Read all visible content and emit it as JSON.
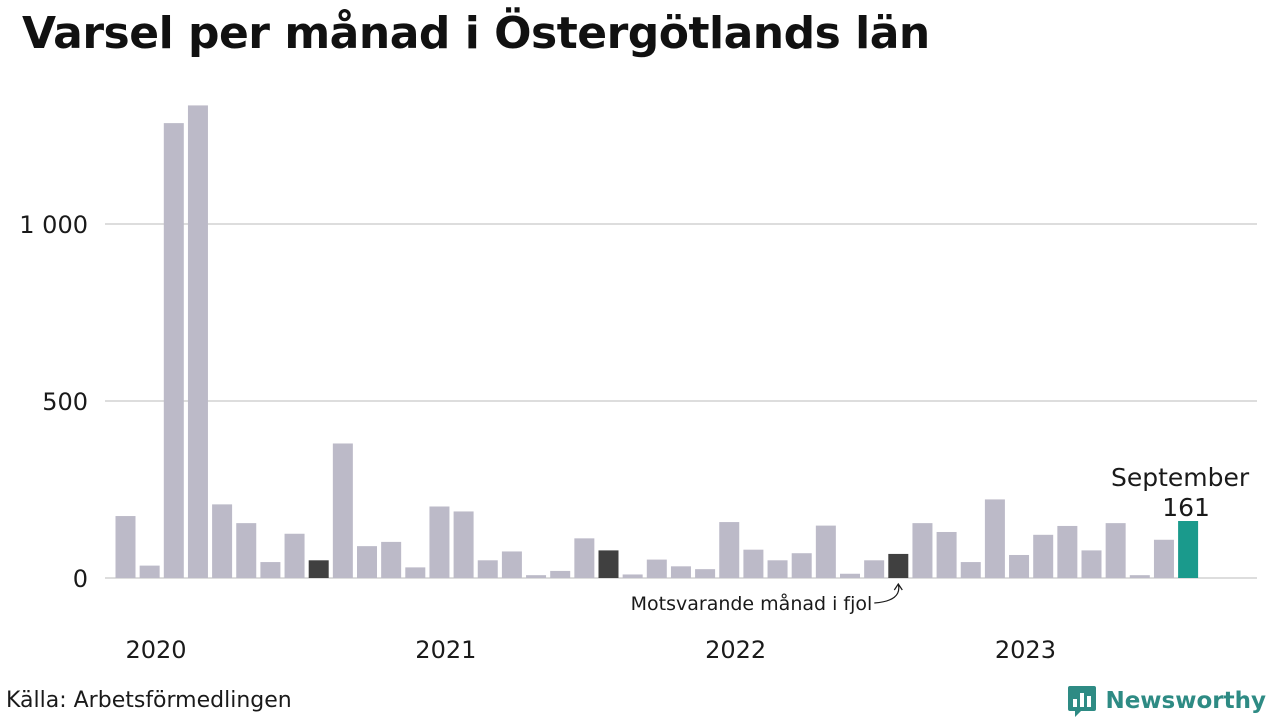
{
  "title": "Varsel per månad i Östergötlands län",
  "source": "Källa: Arbetsförmedlingen",
  "brand": {
    "name": "Newsworthy",
    "color": "#2e8b84",
    "icon": "chart-bars-icon"
  },
  "colors": {
    "bar": "#bcbac8",
    "comparison": "#404040",
    "highlight": "#1a9a8c",
    "grid": "#dddddd",
    "text": "#1a1a1a"
  },
  "annotations": {
    "highlight_label": "September",
    "highlight_value": "161",
    "comparison_label": "Motsvarande månad i fjol"
  },
  "chart_data": {
    "type": "bar",
    "title": "Varsel per månad i Östergötlands län",
    "xlabel": "",
    "ylabel": "",
    "ylim": [
      0,
      1400
    ],
    "yticks": [
      0,
      500,
      1000
    ],
    "ytick_labels": [
      "0",
      "500",
      "1 000"
    ],
    "x_tick_labels": [
      {
        "label": "2020",
        "category": "2020-01"
      },
      {
        "label": "2021",
        "category": "2021-01"
      },
      {
        "label": "2022",
        "category": "2022-01"
      },
      {
        "label": "2023",
        "category": "2023-01"
      }
    ],
    "grid": true,
    "categories": [
      "2020-01",
      "2020-02",
      "2020-03",
      "2020-04",
      "2020-05",
      "2020-06",
      "2020-07",
      "2020-08",
      "2020-09",
      "2020-10",
      "2020-11",
      "2020-12",
      "2021-01",
      "2021-02",
      "2021-03",
      "2021-04",
      "2021-05",
      "2021-06",
      "2021-07",
      "2021-08",
      "2021-09",
      "2021-10",
      "2021-11",
      "2021-12",
      "2022-01",
      "2022-02",
      "2022-03",
      "2022-04",
      "2022-05",
      "2022-06",
      "2022-07",
      "2022-08",
      "2022-09",
      "2022-10",
      "2022-11",
      "2022-12",
      "2023-01",
      "2023-02",
      "2023-03",
      "2023-04",
      "2023-05",
      "2023-06",
      "2023-07",
      "2023-08",
      "2023-09"
    ],
    "values": [
      175,
      35,
      1285,
      1335,
      208,
      155,
      45,
      125,
      50,
      380,
      90,
      102,
      30,
      202,
      188,
      50,
      75,
      8,
      20,
      112,
      78,
      10,
      52,
      33,
      25,
      158,
      80,
      50,
      70,
      148,
      12,
      50,
      68,
      155,
      130,
      45,
      222,
      65,
      122,
      147,
      78,
      155,
      8,
      108,
      161
    ],
    "highlight_category": "2023-09",
    "comparison_categories": [
      "2020-09",
      "2021-09",
      "2022-09"
    ]
  }
}
